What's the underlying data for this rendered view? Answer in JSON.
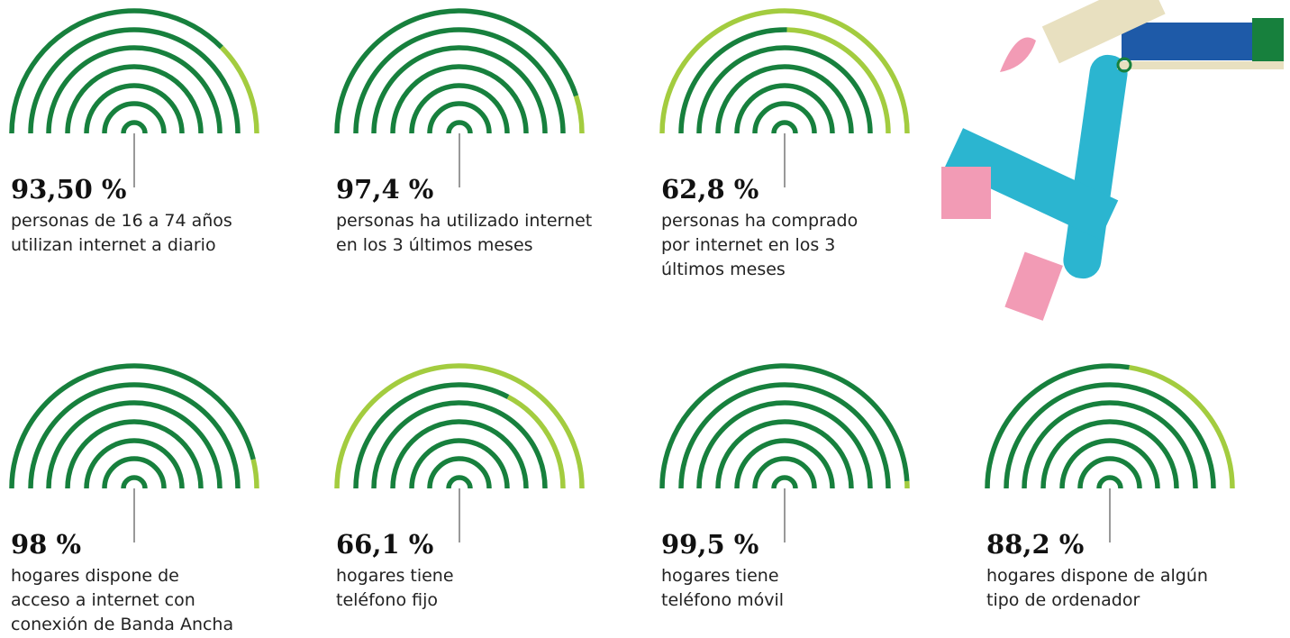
{
  "chart_data": [
    {
      "type": "gauge",
      "values": [
        93.5
      ],
      "value_labels": [
        "93,50 %"
      ],
      "title": [
        "personas de 16 a 74 años",
        "utilizan internet a diario"
      ],
      "color": "#17803d",
      "track_color": "#a3cc3f"
    },
    {
      "type": "gauge",
      "values": [
        97.4
      ],
      "value_labels": [
        "97,4 %"
      ],
      "title": [
        "personas ha utilizado internet",
        "en los 3 últimos meses"
      ],
      "color": "#17803d",
      "track_color": "#a3cc3f"
    },
    {
      "type": "gauge",
      "values": [
        62.8
      ],
      "value_labels": [
        "62,8 %"
      ],
      "title": [
        "personas ha comprado",
        "por internet en los 3",
        "últimos meses"
      ],
      "color": "#17803d",
      "track_color": "#a3cc3f"
    },
    {
      "type": "gauge",
      "values": [
        98
      ],
      "value_labels": [
        "98 %"
      ],
      "title": [
        "hogares dispone de",
        "acceso a internet con",
        "conexión de Banda Ancha"
      ],
      "color": "#17803d",
      "track_color": "#a3cc3f"
    },
    {
      "type": "gauge",
      "values": [
        66.1
      ],
      "value_labels": [
        "66,1 %"
      ],
      "title": [
        "hogares tiene",
        "teléfono fijo"
      ],
      "color": "#17803d",
      "track_color": "#a3cc3f"
    },
    {
      "type": "gauge",
      "values": [
        99.5
      ],
      "value_labels": [
        "99,5 %"
      ],
      "title": [
        "hogares tiene",
        "teléfono móvil"
      ],
      "color": "#17803d",
      "track_color": "#a3cc3f"
    },
    {
      "type": "gauge",
      "values": [
        88.2
      ],
      "value_labels": [
        "88,2 %"
      ],
      "title": [
        "hogares dispone de algún",
        "tipo de ordenador"
      ],
      "color": "#17803d",
      "track_color": "#a3cc3f"
    }
  ]
}
